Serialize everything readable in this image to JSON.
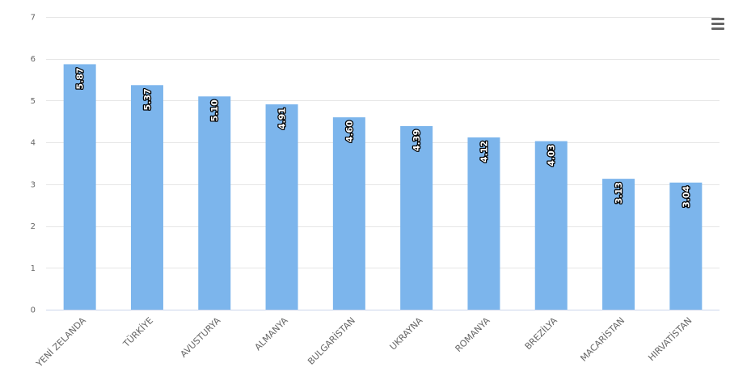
{
  "chart_data": {
    "type": "bar",
    "categories": [
      "YENİ ZELANDA",
      "TÜRKİYE",
      "AVUSTURYA",
      "ALMANYA",
      "BULGARİSTAN",
      "UKRAYNA",
      "ROMANYA",
      "BREZİLYA",
      "MACARİSTAN",
      "HIRVATİSTAN"
    ],
    "values": [
      5.87,
      5.37,
      5.1,
      4.91,
      4.6,
      4.39,
      4.12,
      4.03,
      3.13,
      3.04
    ],
    "data_labels": [
      "5.87",
      "5.37",
      "5.10",
      "4.91",
      "4.60",
      "4.39",
      "4.12",
      "4.03",
      "3.13",
      "3.04"
    ],
    "y_ticks": [
      "0",
      "1",
      "2",
      "3",
      "4",
      "5",
      "6",
      "7"
    ],
    "ylim": [
      0,
      7
    ],
    "title": "",
    "xlabel": "",
    "ylabel": "",
    "grid": true,
    "legend": "none",
    "colors": {
      "bar": "#7cb5ec",
      "grid": "#e6e6e6",
      "axis": "#ccd6eb",
      "tick_text": "#666666",
      "label_text": "#ffffff",
      "label_outline": "#000000"
    }
  },
  "toolbar": {
    "menu_icon": "hamburger-menu-icon"
  }
}
